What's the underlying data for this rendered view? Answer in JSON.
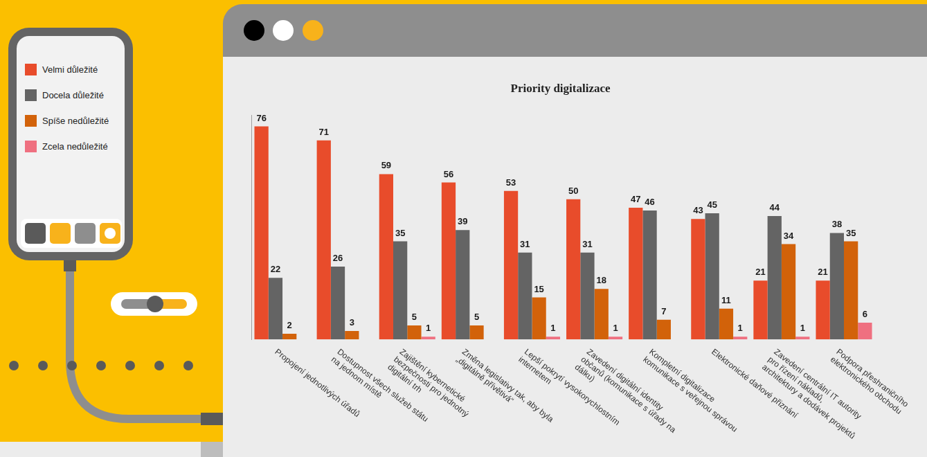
{
  "chart_data": {
    "type": "bar",
    "title": "Priority digitalizace",
    "categories": [
      "Propojení jednotlivých úřadů",
      "Dostupnost všech služeb státu na jednom místě",
      "Zajištění kybernetické bezpečnosti pro jednotný digitální trh",
      "Změna legislativy tak, aby byla „digitálně přívětivá“",
      "Lepší pokrytí vysokorychlostním internetem",
      "Zavedení digitální identity občanů (komunikace s úřady na dálku)",
      "Kompletní digitalizace komunikace s veřejnou správou",
      "Elektronické daňové přiznání",
      "Zavedení centrální IT autority pro řízení nákladů, architektury a dodávek projektů",
      "Podpora přeshraničního elektronického obchodu"
    ],
    "series": [
      {
        "name": "Velmi důležité",
        "color": "#e84c2b",
        "values": [
          76,
          71,
          59,
          56,
          53,
          50,
          47,
          43,
          21,
          21
        ]
      },
      {
        "name": "Docela důležité",
        "color": "#646464",
        "values": [
          22,
          26,
          35,
          39,
          31,
          31,
          46,
          45,
          44,
          38
        ]
      },
      {
        "name": "Spíše nedůležité",
        "color": "#d2620a",
        "values": [
          2,
          3,
          5,
          5,
          15,
          18,
          7,
          11,
          34,
          35
        ]
      },
      {
        "name": "Zcela nedůležité",
        "color": "#ef7080",
        "values": [
          null,
          null,
          1,
          null,
          1,
          1,
          null,
          1,
          1,
          6
        ]
      }
    ],
    "ylim": [
      0,
      80
    ],
    "grid": false,
    "legend": "left",
    "data_labels": true,
    "tick_labels": "x"
  }
}
